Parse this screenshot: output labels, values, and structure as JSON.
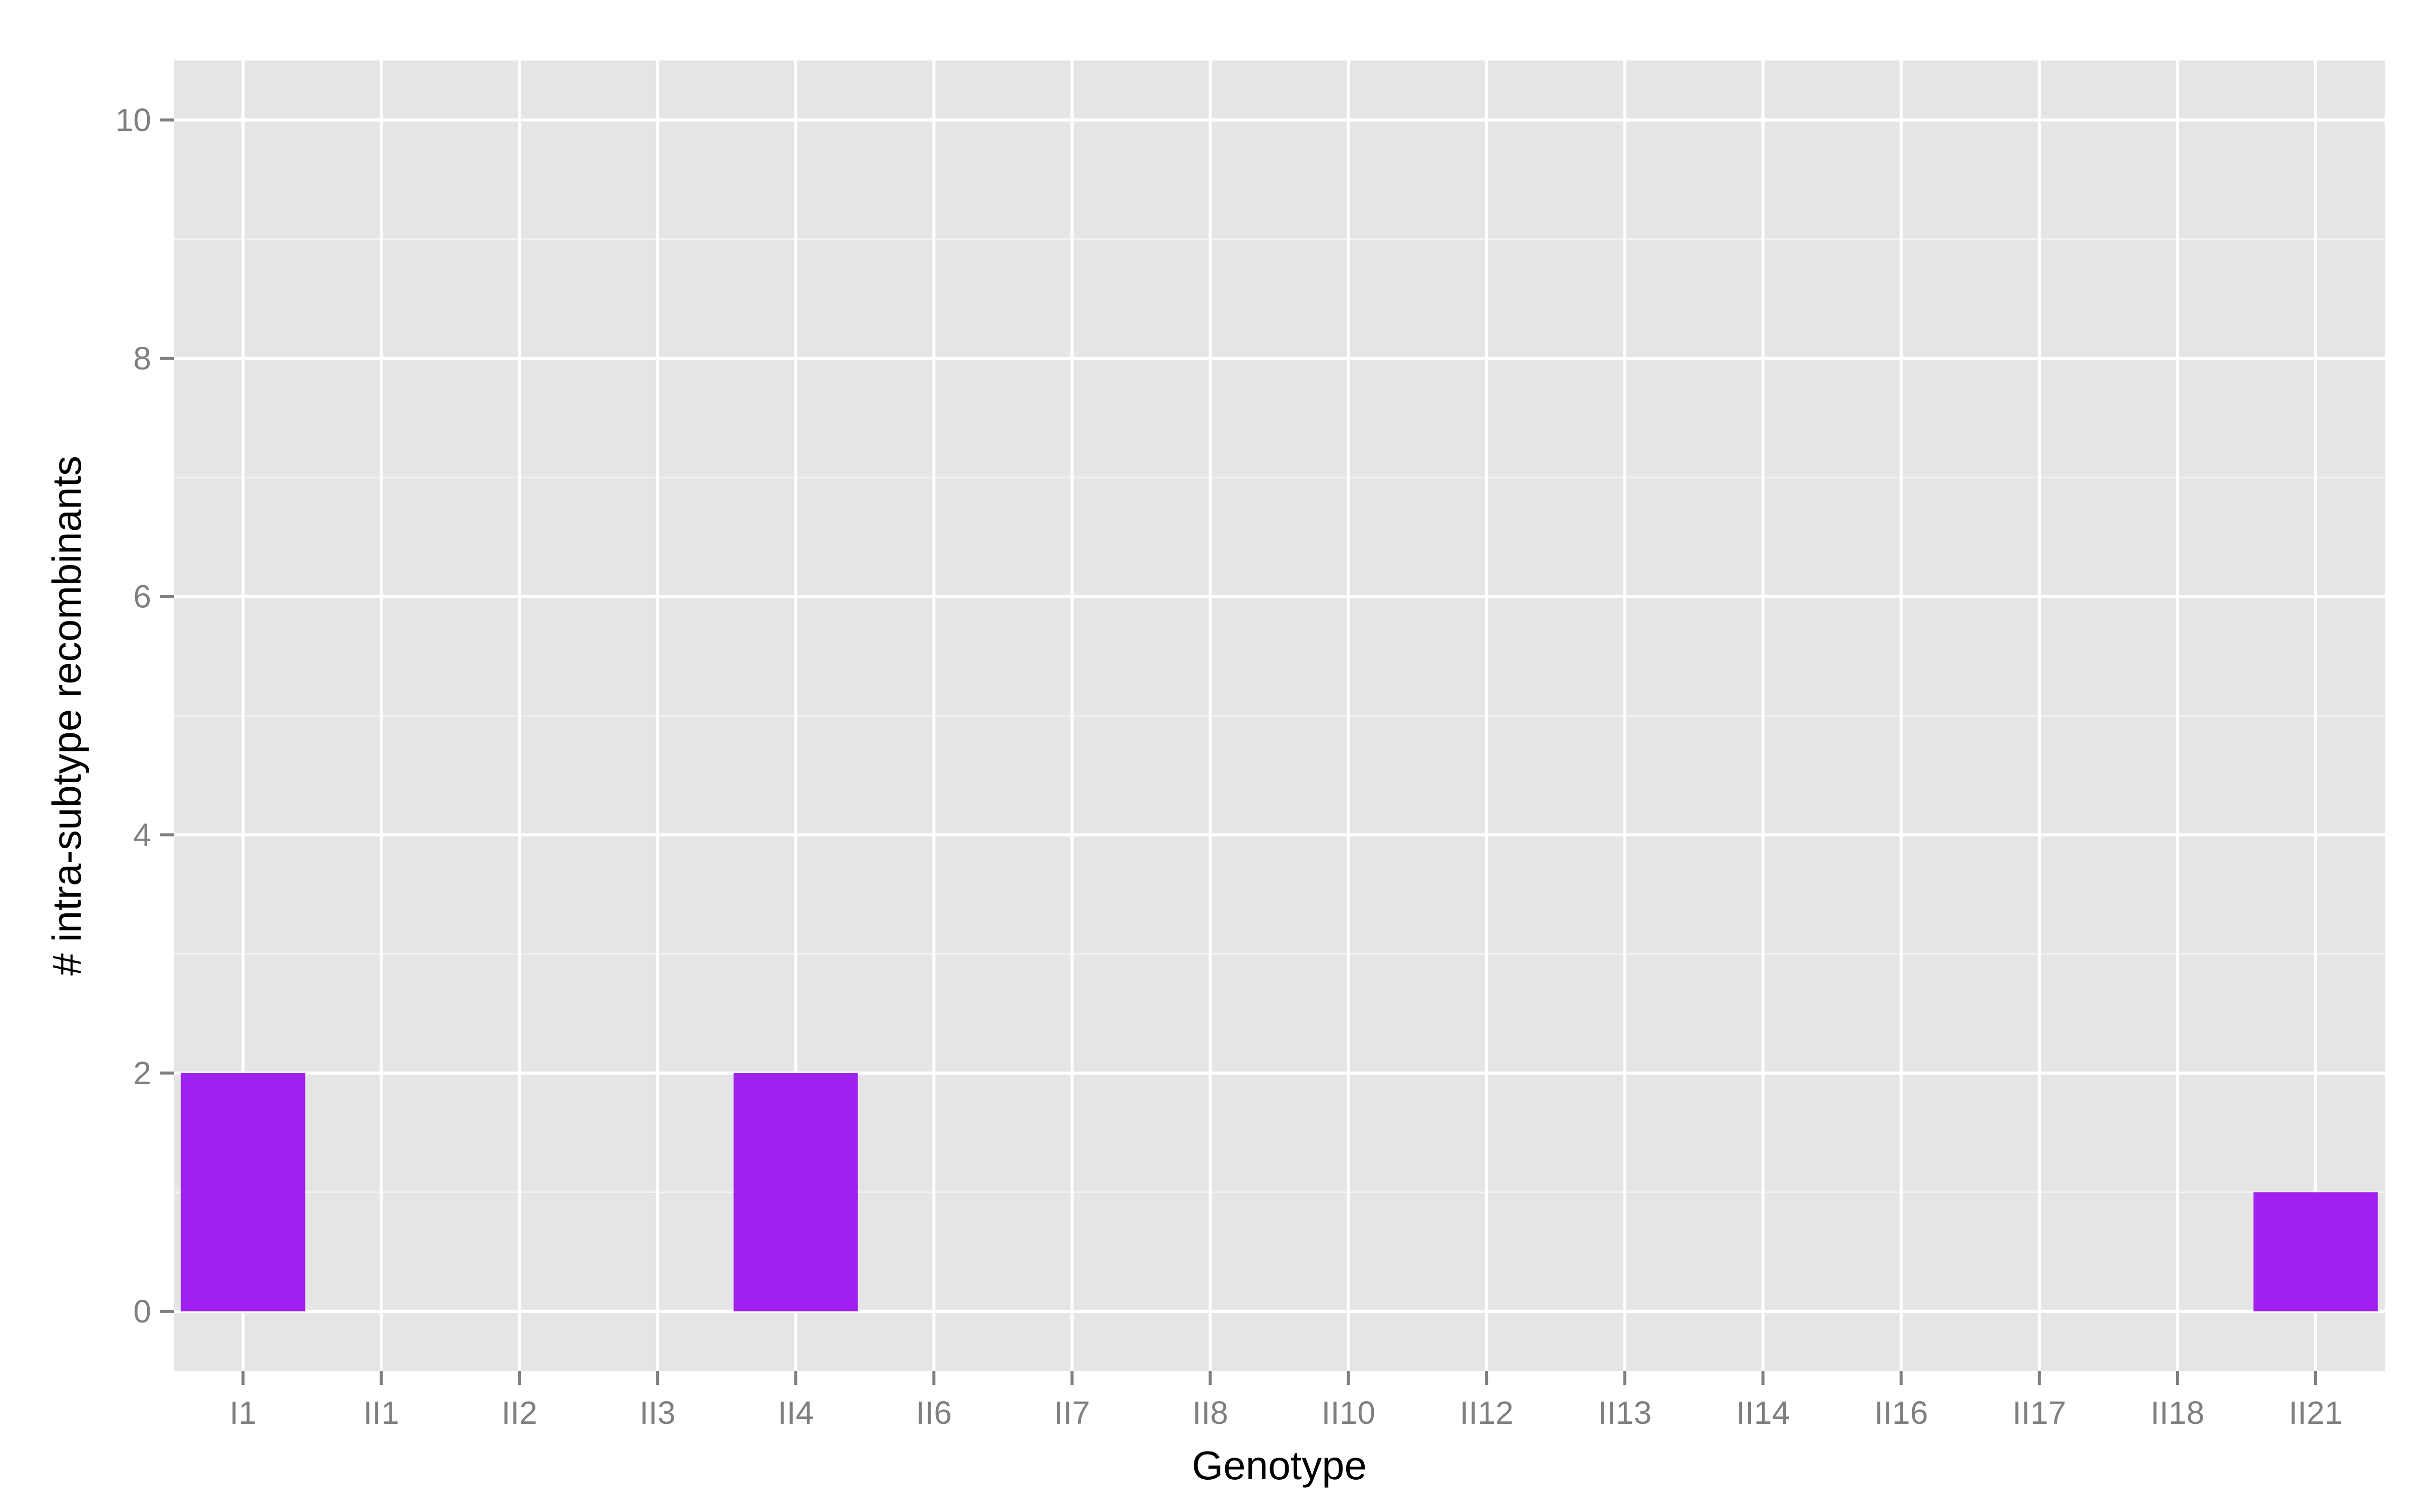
{
  "chart_data": {
    "type": "bar",
    "categories": [
      "I1",
      "II1",
      "II2",
      "II3",
      "II4",
      "II6",
      "II7",
      "II8",
      "II10",
      "II12",
      "II13",
      "II14",
      "II16",
      "II17",
      "II18",
      "II21"
    ],
    "values": [
      2,
      0,
      0,
      0,
      2,
      0,
      0,
      0,
      0,
      0,
      0,
      0,
      0,
      0,
      0,
      1
    ],
    "xlabel": "Genotype",
    "ylabel": "# intra-subtype recombinants",
    "ylim": [
      -0.5,
      10.5
    ],
    "yticks": [
      0,
      2,
      4,
      6,
      8,
      10
    ],
    "grid": true,
    "legend": "none",
    "colors": {
      "bar": "#a020f0",
      "panel": "#e5e5e5",
      "grid_major": "#ffffff",
      "grid_minor": "#f2f2f2",
      "tick_text": "#7f7f7f",
      "tick_mark": "#7f7f7f"
    }
  }
}
